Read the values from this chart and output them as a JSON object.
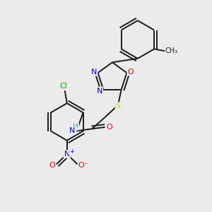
{
  "bg_color": "#ebebeb",
  "bond_color": "#1a1a1a",
  "atom_colors": {
    "N": "#0000ee",
    "O": "#ee0000",
    "S": "#cccc00",
    "Cl": "#00aa00",
    "C": "#1a1a1a",
    "H": "#44aaaa"
  },
  "figsize": [
    3.0,
    3.0
  ],
  "dpi": 100
}
